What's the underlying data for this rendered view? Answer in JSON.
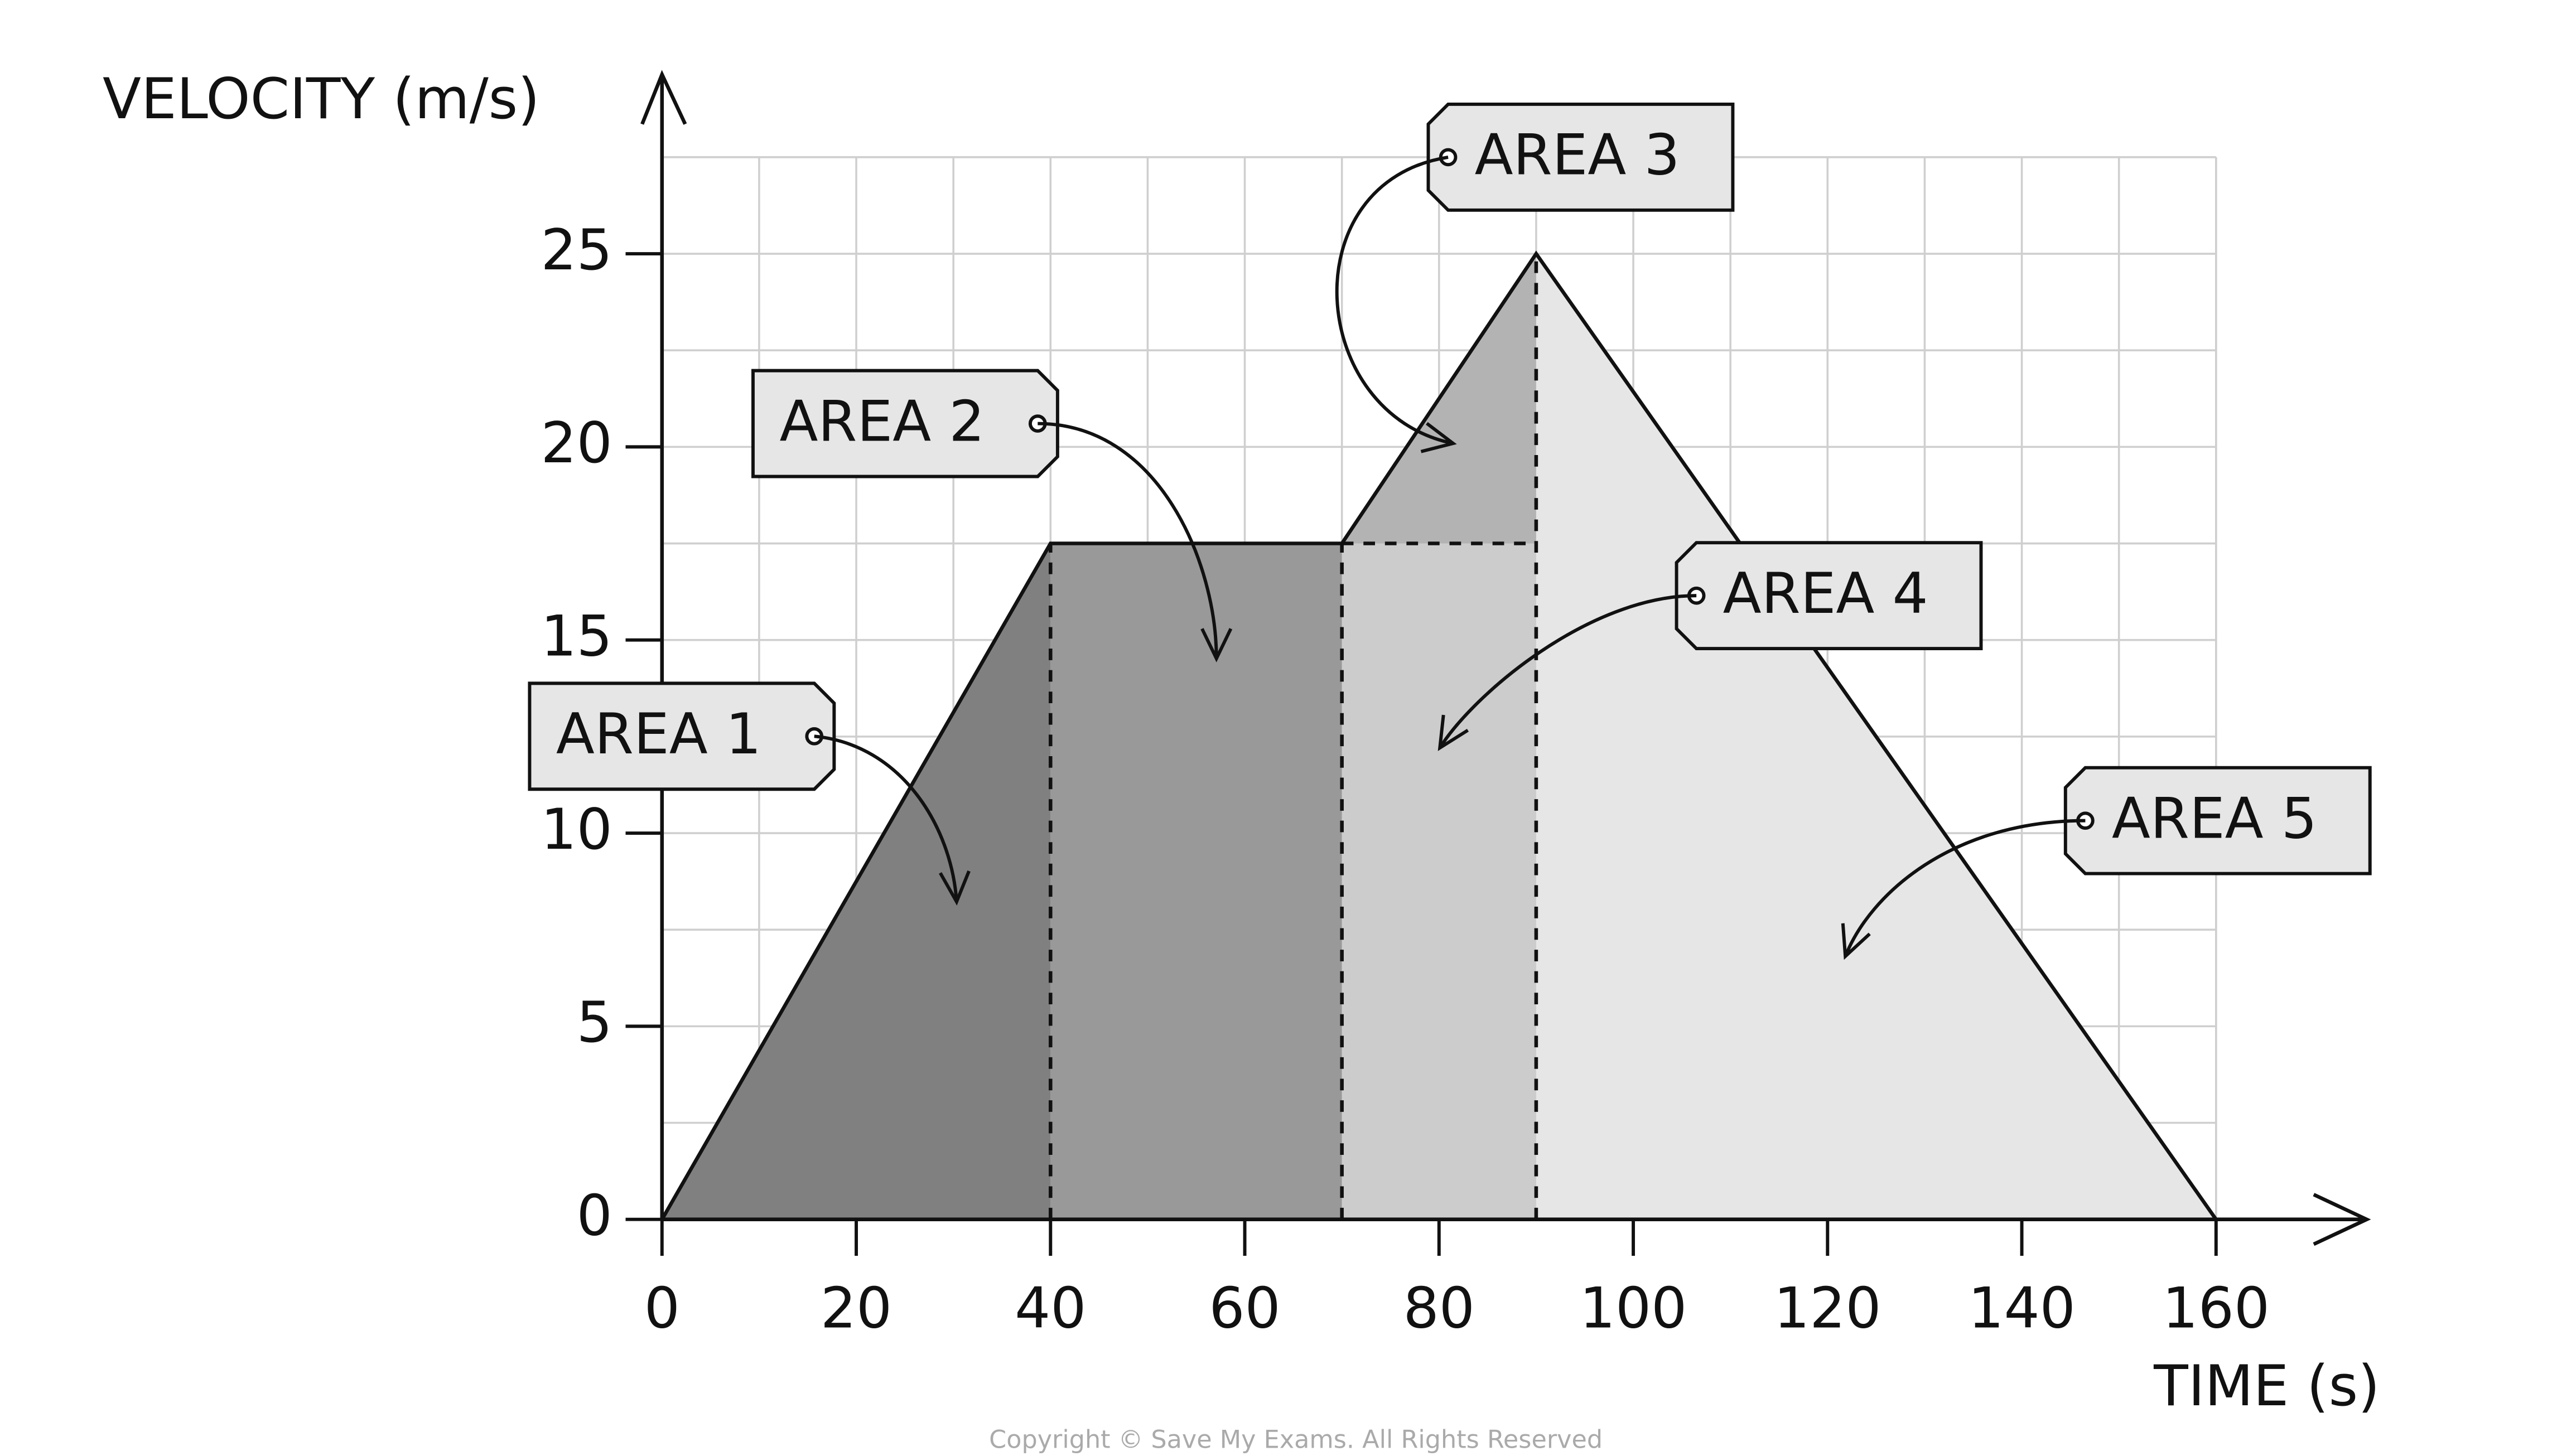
{
  "chart_data": {
    "type": "line",
    "y_label": "VELOCITY (m/s)",
    "x_label": "TIME (s)",
    "x": [
      0,
      40,
      70,
      90,
      160
    ],
    "values": [
      0,
      17.5,
      17.5,
      25,
      0
    ],
    "color": "#111111",
    "xlim": [
      0,
      160
    ],
    "ylim": [
      0,
      27.5
    ],
    "xticks": [
      0,
      20,
      40,
      60,
      80,
      100,
      120,
      140,
      160
    ],
    "yticks": [
      0,
      5,
      10,
      15,
      20,
      25
    ],
    "grid": true,
    "area_colors": [
      "#808080",
      "#999999",
      "#b3b3b3",
      "#cccccc",
      "#e6e6e6"
    ],
    "annotations": [
      "AREA 1",
      "AREA 2",
      "AREA 3",
      "AREA 4",
      "AREA 5"
    ],
    "footer": "Copyright © Save My Exams. All Rights Reserved"
  }
}
